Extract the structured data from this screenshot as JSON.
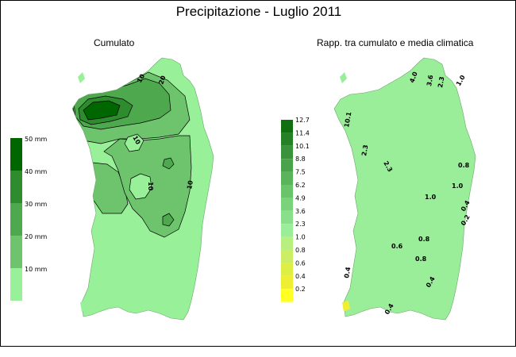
{
  "title": "Precipitazione - Luglio 2011",
  "left_map": {
    "subtitle": "Cumulato",
    "legend": [
      "50 mm",
      "40 mm",
      "30 mm",
      "20 mm",
      "10 mm"
    ],
    "legend_colors": [
      "#006600",
      "#2e8b2e",
      "#4ea84e",
      "#6dc46d",
      "#98f098"
    ],
    "contour_labels": [
      "20",
      "10",
      "10",
      "10",
      "10"
    ]
  },
  "right_map": {
    "subtitle": "Rapp. tra cumulato e media climatica",
    "legend": [
      "12.7",
      "11.4",
      "10.1",
      "8.8",
      "7.5",
      "6.2",
      "4.9",
      "3.6",
      "2.3",
      "1.0",
      "0.8",
      "0.6",
      "0.4",
      "0.2"
    ],
    "legend_colors": [
      "#116e11",
      "#268026",
      "#3a923a",
      "#4aa34a",
      "#5ab45a",
      "#6ac46a",
      "#7ad27a",
      "#8ae08a",
      "#9aee9a",
      "#b8f080",
      "#ccee66",
      "#ddee44",
      "#eeee33",
      "#ffff22"
    ],
    "contour_labels": [
      "4.0",
      "3.6",
      "2.3",
      "1.0",
      "10.1",
      "2.3",
      "2.3",
      "1.0",
      "1.0",
      "0.8",
      "0.8",
      "0.4",
      "0.2",
      "0.6",
      "0.8",
      "0.4",
      "0.4",
      "0.4"
    ]
  },
  "colors": {
    "frame": "#000000",
    "background": "#ffffff",
    "contour": "#000000"
  }
}
